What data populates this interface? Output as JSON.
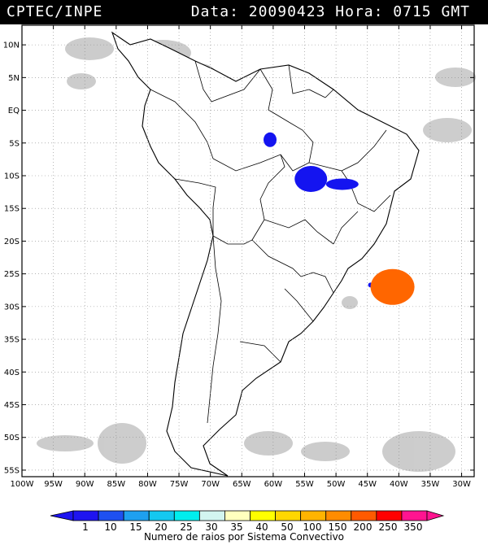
{
  "header": {
    "agency": "CPTEC/INPE",
    "datetime": "Data: 20090423 Hora: 0715 GMT"
  },
  "map": {
    "lat_labels": [
      "10N",
      "5N",
      "EQ",
      "5S",
      "10S",
      "15S",
      "20S",
      "25S",
      "30S",
      "35S",
      "40S",
      "45S",
      "50S",
      "55S"
    ],
    "lat_values": [
      10,
      5,
      0,
      -5,
      -10,
      -15,
      -20,
      -25,
      -30,
      -35,
      -40,
      -45,
      -50,
      -55
    ],
    "lon_labels": [
      "100W",
      "95W",
      "90W",
      "85W",
      "80W",
      "75W",
      "70W",
      "65W",
      "60W",
      "55W",
      "50W",
      "45W",
      "40W",
      "35W",
      "30W"
    ],
    "lon_values": [
      -100,
      -95,
      -90,
      -85,
      -80,
      -75,
      -70,
      -65,
      -60,
      -55,
      -50,
      -45,
      -40,
      -35,
      -30
    ],
    "extent": {
      "lon": [
        -100,
        -28
      ],
      "lat": [
        -56,
        13
      ]
    },
    "convective_systems": [
      {
        "lon": -60.5,
        "lat": -4.5,
        "color": "#1414f0"
      },
      {
        "lon": -54.0,
        "lat": -10.5,
        "color": "#1414f0"
      },
      {
        "lon": -49.0,
        "lat": -11.3,
        "color": "#1414f0"
      },
      {
        "lon": -44.5,
        "lat": -26.7,
        "color": "#1414f0"
      },
      {
        "lon": -41.0,
        "lat": -27.0,
        "color": "#ff6600"
      }
    ]
  },
  "colorbar": {
    "labels": [
      "1",
      "10",
      "15",
      "20",
      "25",
      "30",
      "35",
      "40",
      "50",
      "100",
      "150",
      "200",
      "250",
      "350"
    ],
    "colors": [
      "#1e14f0",
      "#1e50f0",
      "#1ea0f0",
      "#14c8f0",
      "#00eeee",
      "#d2f5f0",
      "#ffffbe",
      "#ffff00",
      "#ffd700",
      "#ffb400",
      "#ff8c00",
      "#ff5a00",
      "#ff0000",
      "#ff1490"
    ],
    "caption": "Numero de raios por Sistema Convectivo"
  }
}
